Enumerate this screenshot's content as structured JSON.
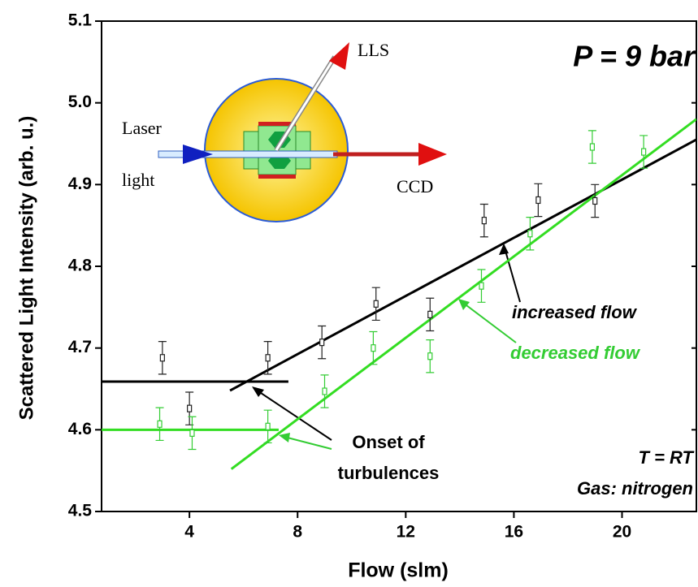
{
  "chart_data": {
    "type": "scatter",
    "x_label": "Flow (slm)",
    "y_label": "Scattered Light Intensity (arb. u.)",
    "xlim": [
      0.75,
      22.75
    ],
    "ylim": [
      4.5,
      5.1
    ],
    "xticks": [
      4,
      8,
      12,
      16,
      20
    ],
    "yticks": [
      4.5,
      4.6,
      4.7,
      4.8,
      4.9,
      {
        "value": 5,
        "label": "5.0"
      },
      5.1
    ],
    "series": [
      {
        "color": "#222222",
        "x": [
          3.0,
          4.0,
          6.9,
          8.9,
          10.9,
          12.9,
          14.9,
          16.9,
          19.0
        ],
        "values": [
          4.688,
          4.626,
          4.688,
          4.707,
          4.754,
          4.741,
          4.856,
          4.881,
          4.88
        ],
        "errors": [
          0.02,
          0.02,
          0.02,
          0.02,
          0.02,
          0.02,
          0.02,
          0.02,
          0.02
        ]
      },
      {
        "color": "#33cc33",
        "x": [
          2.9,
          4.1,
          6.9,
          9.0,
          10.8,
          12.9,
          14.8,
          16.6,
          18.9,
          20.8
        ],
        "values": [
          4.607,
          4.596,
          4.604,
          4.647,
          4.7,
          4.69,
          4.776,
          4.84,
          4.946,
          4.94
        ],
        "errors": [
          0.02,
          0.02,
          0.02,
          0.02,
          0.02,
          0.02,
          0.02,
          0.02,
          0.02,
          0.02
        ]
      }
    ],
    "fits": [
      {
        "color": "#000000",
        "x": [
          0.75,
          7.66
        ],
        "values": [
          4.659,
          4.659
        ]
      },
      {
        "color": "#000000",
        "x": [
          5.5,
          22.75
        ],
        "values": [
          4.648,
          4.955
        ]
      },
      {
        "color": "#33dd22",
        "x": [
          0.75,
          7.3
        ],
        "values": [
          4.6,
          4.6
        ]
      },
      {
        "color": "#33dd22",
        "x": [
          5.55,
          22.75
        ],
        "values": [
          4.552,
          4.98
        ]
      }
    ],
    "annotations": {
      "pressure": "P =  9 bar",
      "increased": "increased flow",
      "decreased": "decreased flow",
      "onset_1": "Onset of",
      "onset_2": "turbulences",
      "temperature": "T = RT",
      "gas": "Gas: nitrogen",
      "lls": "LLS",
      "laser": "Laser",
      "light": "light",
      "ccd": "CCD"
    }
  }
}
